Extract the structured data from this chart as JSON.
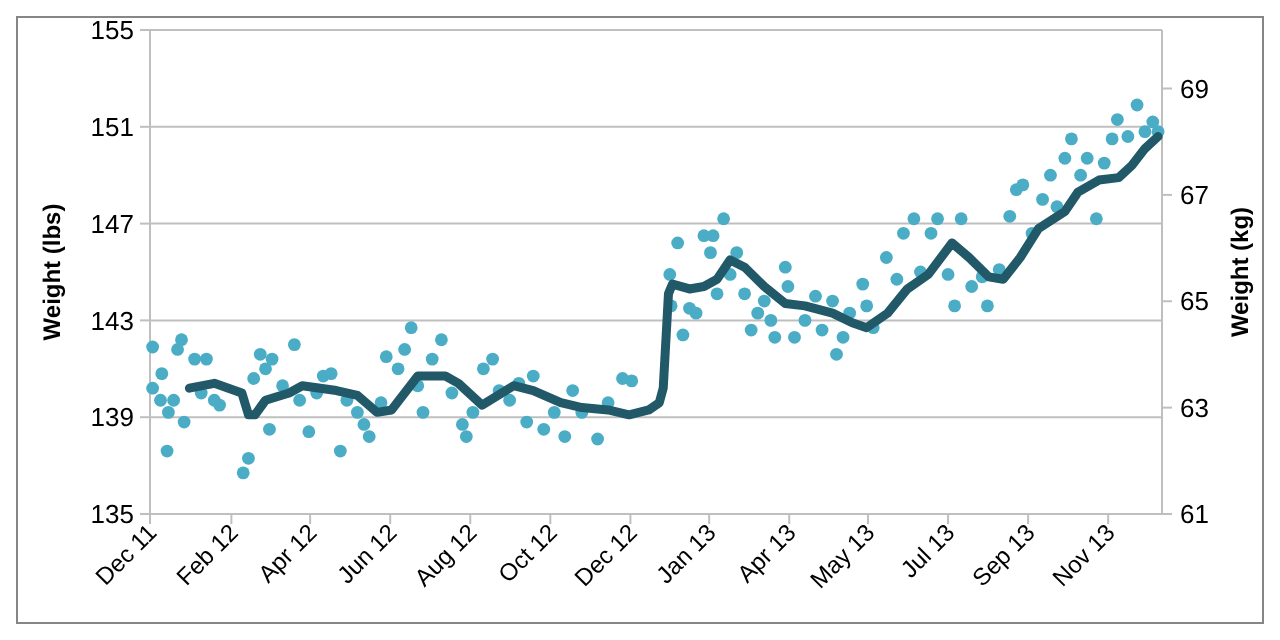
{
  "chart_data": {
    "type": "scatter",
    "ylabel": "Weight (lbs)",
    "y2label": "Weight (kg)",
    "grid": "y",
    "xlim": [
      "2011-12-01",
      "2014-01-10"
    ],
    "ylim": [
      135,
      155
    ],
    "yticks": [
      135,
      139,
      143,
      147,
      151,
      155
    ],
    "y2lim": [
      61,
      70.1
    ],
    "y2ticks": [
      61,
      63,
      65,
      67,
      69
    ],
    "xticks": [
      {
        "value": "2011-12-01",
        "label": "Dec 11"
      },
      {
        "value": "2012-02-01",
        "label": "Feb 12"
      },
      {
        "value": "2012-04-01",
        "label": "Apr 12"
      },
      {
        "value": "2012-06-01",
        "label": "Jun 12"
      },
      {
        "value": "2012-08-01",
        "label": "Aug 12"
      },
      {
        "value": "2012-10-01",
        "label": "Oct 12"
      },
      {
        "value": "2012-12-01",
        "label": "Dec 12"
      },
      {
        "value": "2013-01-30",
        "label": "Jan 13"
      },
      {
        "value": "2013-04-01",
        "label": "Apr 13"
      },
      {
        "value": "2013-05-31",
        "label": "May 13"
      },
      {
        "value": "2013-07-31",
        "label": "Jul 13"
      },
      {
        "value": "2013-09-30",
        "label": "Sep 13"
      },
      {
        "value": "2013-11-30",
        "label": "Nov 13"
      }
    ],
    "series": [
      {
        "marker": "circle",
        "color": "#4bacc6",
        "x": [
          "2011-12-03",
          "2011-12-03",
          "2011-12-09",
          "2011-12-10",
          "2011-12-14",
          "2011-12-15",
          "2011-12-19",
          "2011-12-22",
          "2011-12-25",
          "2011-12-27",
          "2012-01-04",
          "2012-01-09",
          "2012-01-13",
          "2012-01-19",
          "2012-01-23",
          "2012-02-10",
          "2012-02-14",
          "2012-02-18",
          "2012-02-23",
          "2012-02-27",
          "2012-03-01",
          "2012-03-03",
          "2012-03-11",
          "2012-03-20",
          "2012-03-24",
          "2012-03-31",
          "2012-04-06",
          "2012-04-11",
          "2012-04-17",
          "2012-04-24",
          "2012-04-29",
          "2012-05-07",
          "2012-05-12",
          "2012-05-16",
          "2012-05-25",
          "2012-05-29",
          "2012-06-07",
          "2012-06-12",
          "2012-06-17",
          "2012-06-22",
          "2012-06-26",
          "2012-07-03",
          "2012-07-10",
          "2012-07-18",
          "2012-07-26",
          "2012-07-29",
          "2012-08-03",
          "2012-08-11",
          "2012-08-18",
          "2012-08-23",
          "2012-08-31",
          "2012-09-07",
          "2012-09-13",
          "2012-09-18",
          "2012-09-26",
          "2012-10-04",
          "2012-10-12",
          "2012-10-18",
          "2012-10-25",
          "2012-11-06",
          "2012-11-14",
          "2012-11-25",
          "2012-12-02",
          "2012-12-31",
          "2013-01-01",
          "2013-01-06",
          "2013-01-10",
          "2013-01-15",
          "2013-01-20",
          "2013-01-26",
          "2013-01-31",
          "2013-02-02",
          "2013-02-05",
          "2013-02-10",
          "2013-02-15",
          "2013-02-20",
          "2013-02-26",
          "2013-03-03",
          "2013-03-08",
          "2013-03-13",
          "2013-03-18",
          "2013-03-21",
          "2013-03-29",
          "2013-03-31",
          "2013-04-05",
          "2013-04-13",
          "2013-04-21",
          "2013-04-26",
          "2013-05-04",
          "2013-05-07",
          "2013-05-12",
          "2013-05-17",
          "2013-05-27",
          "2013-05-30",
          "2013-06-04",
          "2013-06-14",
          "2013-06-22",
          "2013-06-27",
          "2013-07-05",
          "2013-07-10",
          "2013-07-18",
          "2013-07-23",
          "2013-07-31",
          "2013-08-05",
          "2013-08-10",
          "2013-08-18",
          "2013-08-26",
          "2013-08-30",
          "2013-09-08",
          "2013-09-16",
          "2013-09-21",
          "2013-09-26",
          "2013-10-03",
          "2013-10-11",
          "2013-10-17",
          "2013-10-22",
          "2013-10-28",
          "2013-11-02",
          "2013-11-09",
          "2013-11-14",
          "2013-11-21",
          "2013-11-27",
          "2013-12-03",
          "2013-12-07",
          "2013-12-15",
          "2013-12-22",
          "2013-12-28",
          "2014-01-03",
          "2014-01-07"
        ],
        "values": [
          141.9,
          140.2,
          139.7,
          140.8,
          137.6,
          139.2,
          139.7,
          141.8,
          142.2,
          138.8,
          141.4,
          140.0,
          141.4,
          139.7,
          139.5,
          136.7,
          137.3,
          140.6,
          141.6,
          141.0,
          138.5,
          141.4,
          140.3,
          142.0,
          139.7,
          138.4,
          140.0,
          140.7,
          140.8,
          137.6,
          139.7,
          139.2,
          138.7,
          138.2,
          139.6,
          141.5,
          141.0,
          141.8,
          142.7,
          140.3,
          139.2,
          141.4,
          142.2,
          140.0,
          138.7,
          138.2,
          139.2,
          141.0,
          141.4,
          140.1,
          139.7,
          140.4,
          138.8,
          140.7,
          138.5,
          139.2,
          138.2,
          140.1,
          139.2,
          138.1,
          139.6,
          140.6,
          140.5,
          144.9,
          143.6,
          146.2,
          142.4,
          143.5,
          143.3,
          146.5,
          145.8,
          146.5,
          144.1,
          147.2,
          144.9,
          145.8,
          144.1,
          142.6,
          143.3,
          143.8,
          143.0,
          142.3,
          145.2,
          144.4,
          142.3,
          143.0,
          144.0,
          142.6,
          143.8,
          141.6,
          142.3,
          143.3,
          144.5,
          143.6,
          142.7,
          145.6,
          144.7,
          146.6,
          147.2,
          145.0,
          146.6,
          147.2,
          144.9,
          143.6,
          147.2,
          144.4,
          144.8,
          143.6,
          145.1,
          147.3,
          148.4,
          148.6,
          146.6,
          148.0,
          149.0,
          147.7,
          149.7,
          150.5,
          149.0,
          149.7,
          147.2,
          149.5,
          150.5,
          151.3,
          150.6,
          151.9,
          150.8,
          151.2,
          150.8
        ]
      },
      {
        "type": "line",
        "marker": "none",
        "line_style": "solid",
        "color": "#215968",
        "x": [
          "2011-12-31",
          "2012-01-19",
          "2012-02-09",
          "2012-02-14",
          "2012-02-19",
          "2012-02-27",
          "2012-03-16",
          "2012-03-26",
          "2012-04-21",
          "2012-05-07",
          "2012-05-22",
          "2012-06-02",
          "2012-06-12",
          "2012-06-22",
          "2012-07-13",
          "2012-07-23",
          "2012-08-10",
          "2012-09-03",
          "2012-09-18",
          "2012-10-09",
          "2012-10-25",
          "2012-11-14",
          "2012-11-30",
          "2012-12-15",
          "2012-12-23",
          "2012-12-26",
          "2012-12-30",
          "2013-01-02",
          "2013-01-15",
          "2013-01-26",
          "2013-02-05",
          "2013-02-15",
          "2013-02-26",
          "2013-03-13",
          "2013-03-29",
          "2013-04-13",
          "2013-05-04",
          "2013-05-19",
          "2013-05-30",
          "2013-06-15",
          "2013-06-30",
          "2013-07-16",
          "2013-08-03",
          "2013-08-16",
          "2013-08-31",
          "2013-09-11",
          "2013-09-24",
          "2013-10-08",
          "2013-10-28",
          "2013-11-07",
          "2013-11-23",
          "2013-12-08",
          "2013-12-18",
          "2013-12-28",
          "2014-01-07"
        ],
        "values": [
          140.2,
          140.4,
          140.0,
          139.1,
          139.1,
          139.7,
          140.0,
          140.3,
          140.1,
          139.9,
          139.2,
          139.3,
          140.0,
          140.7,
          140.7,
          140.4,
          139.5,
          140.3,
          140.1,
          139.6,
          139.4,
          139.3,
          139.1,
          139.3,
          139.6,
          140.2,
          144.1,
          144.5,
          144.3,
          144.4,
          144.7,
          145.5,
          145.2,
          144.4,
          143.7,
          143.6,
          143.3,
          142.9,
          142.7,
          143.3,
          144.3,
          144.9,
          146.2,
          145.6,
          144.8,
          144.7,
          145.6,
          146.8,
          147.5,
          148.3,
          148.8,
          148.9,
          149.4,
          150.1,
          150.6
        ]
      }
    ]
  }
}
